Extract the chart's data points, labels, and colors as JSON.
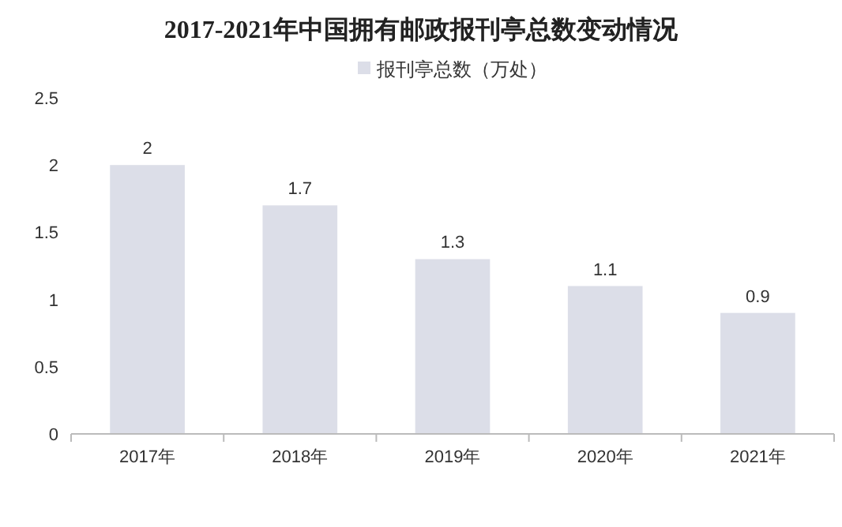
{
  "chart_data": {
    "type": "bar",
    "title": "2017-2021年中国拥有邮政报刊亭总数变动情况",
    "categories": [
      "2017年",
      "2018年",
      "2019年",
      "2020年",
      "2021年"
    ],
    "series": [
      {
        "name": "报刊亭总数（万处）",
        "color": "#dcdee8",
        "values": [
          2,
          1.7,
          1.3,
          1.1,
          0.9
        ]
      }
    ],
    "ylim": [
      0,
      2.5
    ],
    "yticks": [
      0,
      0.5,
      1,
      1.5,
      2,
      2.5
    ],
    "data_labels": true,
    "legend": "top",
    "grid": false
  }
}
